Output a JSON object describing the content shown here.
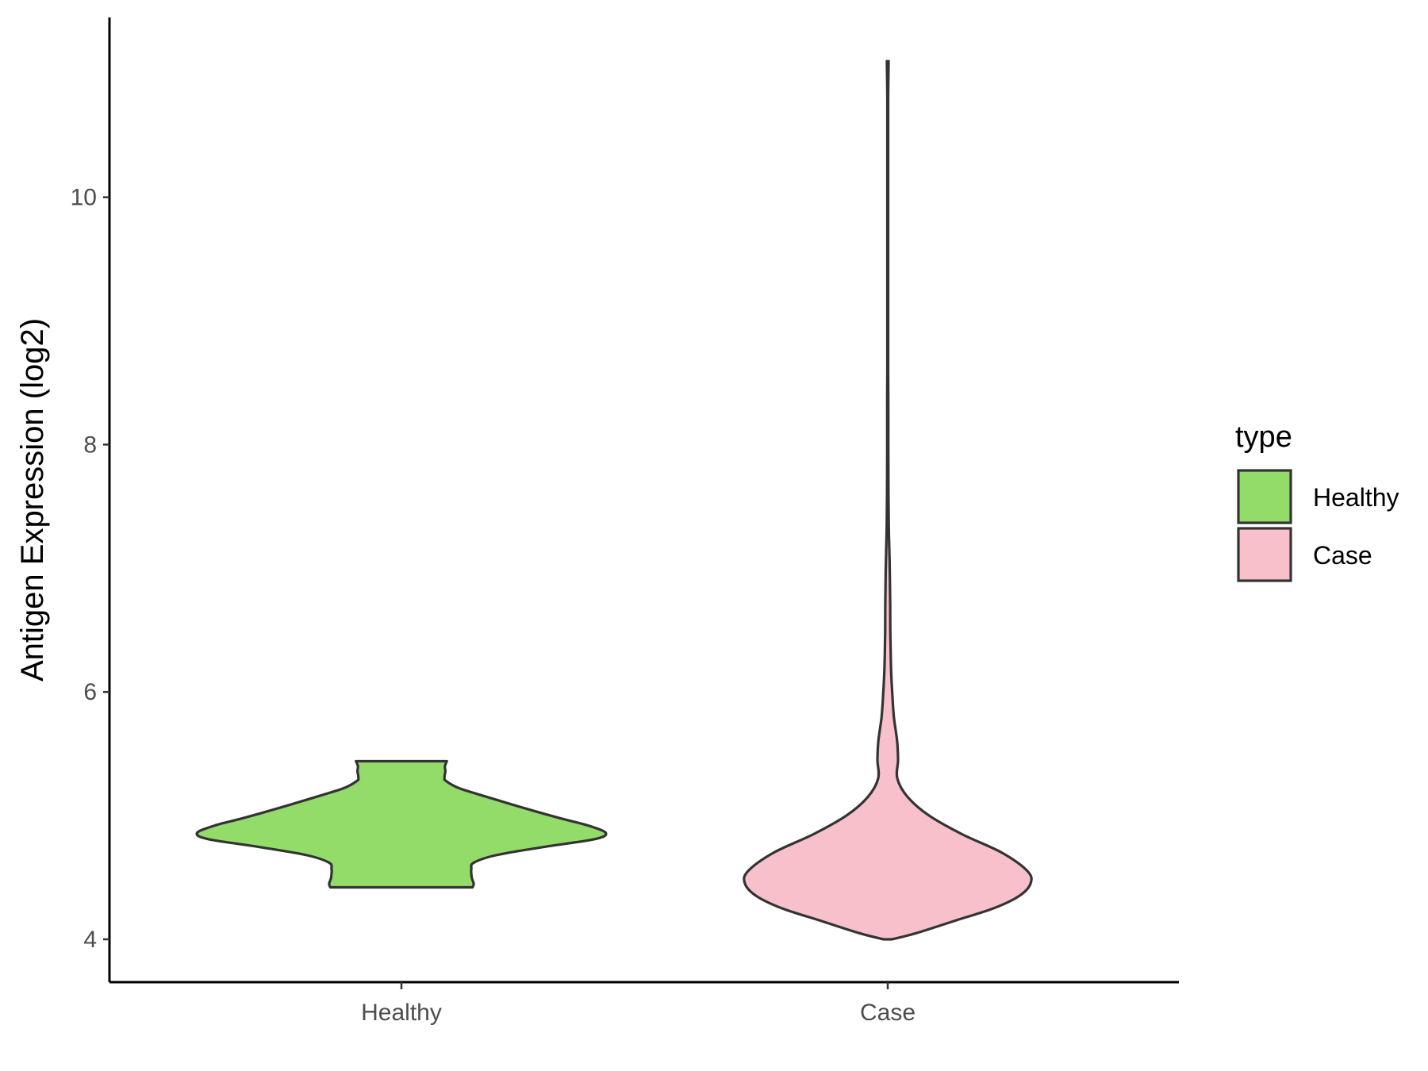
{
  "chart_data": {
    "type": "violin",
    "ylabel": "Antigen Expression (log2)",
    "xlabel": "",
    "categories": [
      "Healthy",
      "Case"
    ],
    "ylim": [
      3.3,
      11.6
    ],
    "yticks": [
      4,
      6,
      8,
      10
    ],
    "grid": false,
    "legend": {
      "title": "type",
      "placement": "right",
      "entries": [
        {
          "label": "Healthy",
          "color": "#93DC6A"
        },
        {
          "label": "Case",
          "color": "#F8C0CB"
        }
      ]
    },
    "series": [
      {
        "name": "Healthy",
        "color": "#93DC6A",
        "range": [
          4.42,
          5.44
        ],
        "density": [
          [
            4.42,
            0.324
          ],
          [
            4.45,
            0.329
          ],
          [
            4.5,
            0.32
          ],
          [
            4.57,
            0.318
          ],
          [
            4.62,
            0.33
          ],
          [
            4.68,
            0.43
          ],
          [
            4.75,
            0.66
          ],
          [
            4.81,
            0.88
          ],
          [
            4.86,
            0.93
          ],
          [
            4.92,
            0.85
          ],
          [
            4.98,
            0.72
          ],
          [
            5.06,
            0.56
          ],
          [
            5.14,
            0.41
          ],
          [
            5.22,
            0.265
          ],
          [
            5.28,
            0.203
          ],
          [
            5.31,
            0.196
          ],
          [
            5.36,
            0.2
          ],
          [
            5.4,
            0.198
          ],
          [
            5.44,
            0.207
          ]
        ]
      },
      {
        "name": "Case",
        "color": "#F8C0CB",
        "range": [
          4.0,
          11.1
        ],
        "density": [
          [
            4.0,
            0.03
          ],
          [
            4.05,
            0.2
          ],
          [
            4.15,
            0.47
          ],
          [
            4.25,
            0.74
          ],
          [
            4.35,
            0.92
          ],
          [
            4.45,
            1.0
          ],
          [
            4.55,
            0.98
          ],
          [
            4.7,
            0.8
          ],
          [
            4.85,
            0.52
          ],
          [
            5.0,
            0.29
          ],
          [
            5.15,
            0.14
          ],
          [
            5.3,
            0.067
          ],
          [
            5.45,
            0.072
          ],
          [
            5.6,
            0.066
          ],
          [
            5.8,
            0.043
          ],
          [
            6.0,
            0.031
          ],
          [
            6.2,
            0.023
          ],
          [
            6.5,
            0.018
          ],
          [
            6.7,
            0.017
          ],
          [
            7.0,
            0.014
          ],
          [
            7.3,
            0.008
          ],
          [
            7.6,
            0.005
          ],
          [
            8.0,
            0.004
          ],
          [
            8.3,
            0.004
          ],
          [
            8.6,
            0.003
          ],
          [
            9.0,
            0.003
          ],
          [
            9.5,
            0.003
          ],
          [
            10.0,
            0.003
          ],
          [
            10.5,
            0.003
          ],
          [
            10.8,
            0.003
          ],
          [
            11.1,
            0.006
          ]
        ]
      }
    ]
  }
}
